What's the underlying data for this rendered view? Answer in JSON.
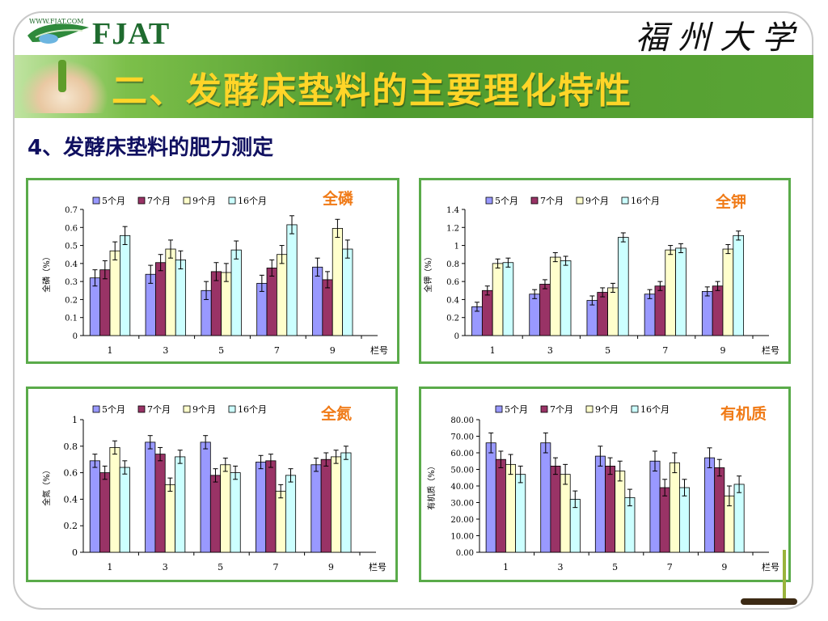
{
  "header": {
    "logo_www": "WWW.FJAT.COM",
    "logo_text": "FJAT",
    "university": "福州大学",
    "title": "二、发酵床垫料的主要理化特性"
  },
  "subtitle": "4、发酵床垫料的肥力测定",
  "colors": {
    "series": [
      "#9999ff",
      "#993366",
      "#ffffcc",
      "#ccffff"
    ],
    "frame": "#5aab4a",
    "label": "#f07a16",
    "banner": "#4f9a2e",
    "title": "#ffd528"
  },
  "chart_data": [
    {
      "id": "phosphorus",
      "type": "bar",
      "label": "全磷",
      "ylabel": "全磷（%）",
      "xlabel": "栏号",
      "categories": [
        "1",
        "3",
        "5",
        "7",
        "9"
      ],
      "ylim": [
        0,
        0.7
      ],
      "yticks": [
        "0",
        "0.1",
        "0.2",
        "0.3",
        "0.4",
        "0.5",
        "0.6",
        "0.7"
      ],
      "series": [
        {
          "name": "5个月",
          "values": [
            0.32,
            0.34,
            0.25,
            0.29,
            0.38
          ],
          "errors": [
            0.045,
            0.05,
            0.05,
            0.045,
            0.05
          ]
        },
        {
          "name": "7个月",
          "values": [
            0.365,
            0.405,
            0.355,
            0.375,
            0.31
          ],
          "errors": [
            0.05,
            0.045,
            0.05,
            0.045,
            0.045
          ]
        },
        {
          "name": "9个月",
          "values": [
            0.47,
            0.48,
            0.35,
            0.45,
            0.595
          ],
          "errors": [
            0.05,
            0.05,
            0.05,
            0.05,
            0.05
          ]
        },
        {
          "name": "16个月",
          "values": [
            0.555,
            0.42,
            0.475,
            0.615,
            0.48
          ],
          "errors": [
            0.05,
            0.05,
            0.05,
            0.05,
            0.05
          ]
        }
      ]
    },
    {
      "id": "potassium",
      "type": "bar",
      "label": "全钾",
      "ylabel": "全钾（%）",
      "xlabel": "栏号",
      "categories": [
        "1",
        "3",
        "5",
        "7",
        "9"
      ],
      "ylim": [
        0,
        1.4
      ],
      "yticks": [
        "0",
        "0.2",
        "0.4",
        "0.6",
        "0.8",
        "1",
        "1.2",
        "1.4"
      ],
      "series": [
        {
          "name": "5个月",
          "values": [
            0.32,
            0.46,
            0.39,
            0.46,
            0.49
          ],
          "errors": [
            0.05,
            0.05,
            0.05,
            0.05,
            0.05
          ]
        },
        {
          "name": "7个月",
          "values": [
            0.5,
            0.57,
            0.48,
            0.55,
            0.55
          ],
          "errors": [
            0.05,
            0.05,
            0.05,
            0.05,
            0.05
          ]
        },
        {
          "name": "9个月",
          "values": [
            0.8,
            0.87,
            0.53,
            0.95,
            0.96
          ],
          "errors": [
            0.05,
            0.05,
            0.05,
            0.05,
            0.05
          ]
        },
        {
          "name": "16个月",
          "values": [
            0.81,
            0.83,
            1.09,
            0.97,
            1.11
          ],
          "errors": [
            0.05,
            0.05,
            0.05,
            0.05,
            0.05
          ]
        }
      ]
    },
    {
      "id": "nitrogen",
      "type": "bar",
      "label": "全氮",
      "ylabel": "全氮（%）",
      "xlabel": "栏号",
      "categories": [
        "1",
        "3",
        "5",
        "7",
        "9"
      ],
      "ylim": [
        0,
        1
      ],
      "yticks": [
        "0",
        "0.2",
        "0.4",
        "0.6",
        "0.8",
        "1"
      ],
      "series": [
        {
          "name": "5个月",
          "values": [
            0.69,
            0.83,
            0.83,
            0.68,
            0.66
          ],
          "errors": [
            0.05,
            0.05,
            0.05,
            0.05,
            0.05
          ]
        },
        {
          "name": "7个月",
          "values": [
            0.6,
            0.74,
            0.58,
            0.69,
            0.7
          ],
          "errors": [
            0.05,
            0.05,
            0.05,
            0.05,
            0.05
          ]
        },
        {
          "name": "9个月",
          "values": [
            0.79,
            0.51,
            0.66,
            0.46,
            0.72
          ],
          "errors": [
            0.05,
            0.05,
            0.05,
            0.05,
            0.05
          ]
        },
        {
          "name": "16个月",
          "values": [
            0.64,
            0.72,
            0.6,
            0.58,
            0.75
          ],
          "errors": [
            0.05,
            0.05,
            0.05,
            0.05,
            0.05
          ]
        }
      ]
    },
    {
      "id": "organic",
      "type": "bar",
      "label": "有机质",
      "ylabel": "有机质（%）",
      "xlabel": "栏号",
      "categories": [
        "1",
        "3",
        "5",
        "7",
        "9"
      ],
      "ylim": [
        0,
        80
      ],
      "yticks": [
        "0.00",
        "10.00",
        "20.00",
        "30.00",
        "40.00",
        "50.00",
        "60.00",
        "70.00",
        "80.00"
      ],
      "series": [
        {
          "name": "5个月",
          "values": [
            66,
            66,
            58,
            55,
            57
          ],
          "errors": [
            6,
            6,
            6,
            6,
            6
          ]
        },
        {
          "name": "7个月",
          "values": [
            56,
            52,
            52,
            39,
            51
          ],
          "errors": [
            5,
            5,
            5,
            5,
            5
          ]
        },
        {
          "name": "9个月",
          "values": [
            53,
            47,
            49,
            54,
            34
          ],
          "errors": [
            6,
            6,
            6,
            6,
            6
          ]
        },
        {
          "name": "16个月",
          "values": [
            47,
            32,
            33,
            39,
            41
          ],
          "errors": [
            5,
            5,
            5,
            5,
            5
          ]
        }
      ]
    }
  ]
}
